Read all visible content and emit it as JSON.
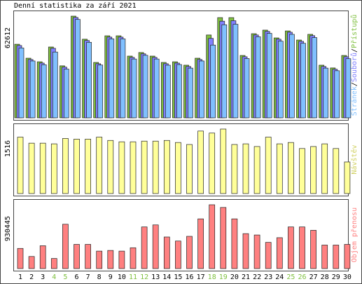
{
  "chart_data": [
    {
      "type": "bar",
      "title": "Denní statistika za září 2021",
      "legend_separator": "/",
      "ylim": [
        0,
        62612
      ],
      "yticks": [
        62612
      ],
      "series": [
        {
          "name": "Přístupů",
          "color": "#80c040",
          "values": [
            45300,
            36700,
            34500,
            43600,
            32000,
            62612,
            48400,
            34100,
            50500,
            50500,
            38000,
            40200,
            38000,
            34100,
            34500,
            32400,
            36700,
            51000,
            61700,
            61700,
            38400,
            51800,
            54000,
            49200,
            53500,
            47900,
            51400,
            32400,
            30700,
            38400
          ]
        },
        {
          "name": "Souborů",
          "color": "#8080ff",
          "values": [
            44500,
            35900,
            33700,
            42800,
            31200,
            61800,
            47600,
            33300,
            49700,
            49700,
            37200,
            39400,
            37200,
            33300,
            33700,
            31600,
            35900,
            48900,
            59500,
            59800,
            37600,
            51000,
            53200,
            48400,
            52700,
            47100,
            50600,
            31600,
            29900,
            37600
          ]
        },
        {
          "name": "Stránek",
          "color": "#80c0ff",
          "values": [
            43000,
            35000,
            32700,
            40500,
            30000,
            60600,
            46500,
            32500,
            48600,
            48600,
            36200,
            38500,
            36200,
            32400,
            32800,
            30600,
            35000,
            44800,
            57300,
            57600,
            36500,
            49900,
            52000,
            47200,
            51400,
            45900,
            49400,
            30600,
            29000,
            36400
          ]
        }
      ]
    },
    {
      "type": "bar",
      "ylim": [
        0,
        1516
      ],
      "yticks": [
        1516
      ],
      "series": [
        {
          "name": "Návštěv",
          "color": "#ffff99",
          "label_color": "#d0d060",
          "values": [
            1326,
            1184,
            1184,
            1168,
            1295,
            1279,
            1279,
            1326,
            1248,
            1216,
            1216,
            1232,
            1232,
            1248,
            1200,
            1153,
            1469,
            1421,
            1516,
            1153,
            1168,
            1105,
            1326,
            1168,
            1200,
            1058,
            1105,
            1168,
            1058,
            742
          ]
        }
      ]
    },
    {
      "type": "bar",
      "ylim": [
        0,
        930445
      ],
      "yticks": [
        930445
      ],
      "categories": [
        "1",
        "2",
        "3",
        "4",
        "5",
        "6",
        "7",
        "8",
        "9",
        "10",
        "11",
        "12",
        "13",
        "14",
        "15",
        "16",
        "17",
        "18",
        "19",
        "20",
        "21",
        "22",
        "23",
        "24",
        "25",
        "26",
        "27",
        "28",
        "29",
        "30"
      ],
      "category_colors": [
        "#000",
        "#000",
        "#000",
        "#80c040",
        "#80c040",
        "#000",
        "#000",
        "#000",
        "#000",
        "#000",
        "#80c040",
        "#80c040",
        "#000",
        "#000",
        "#000",
        "#000",
        "#000",
        "#80c040",
        "#80c040",
        "#000",
        "#000",
        "#000",
        "#000",
        "#000",
        "#80c040",
        "#80c040",
        "#000",
        "#000",
        "#000",
        "#000"
      ],
      "series": [
        {
          "name": "Objem přenosu",
          "color": "#ff8080",
          "values": [
            293800,
            176300,
            333000,
            146900,
            646400,
            352600,
            352600,
            254600,
            264400,
            254600,
            303600,
            607200,
            636600,
            460300,
            401500,
            470100,
            724700,
            930445,
            891200,
            724700,
            509300,
            489700,
            382000,
            450500,
            607200,
            607200,
            558200,
            342800,
            342800,
            352600
          ]
        }
      ]
    }
  ]
}
